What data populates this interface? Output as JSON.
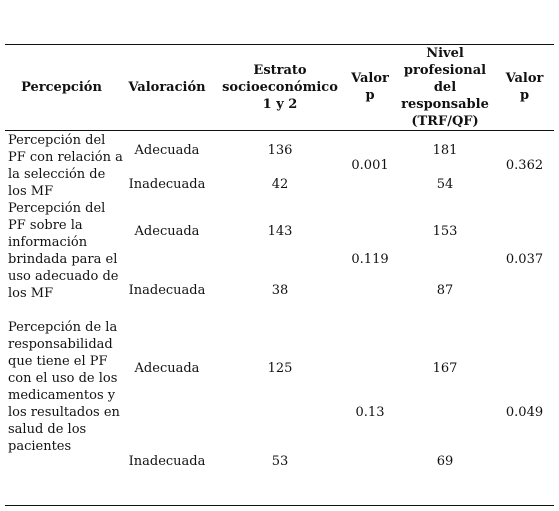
{
  "headers": {
    "percepcion": "Percepción",
    "valoracion": "Valoración",
    "estrato": "Estrato socioeconómico 1 y 2",
    "valor_p_1": "Valor p",
    "nivel": "Nivel profesional del responsable (TRF/QF)",
    "valor_p_2": "Valor p"
  },
  "rows": [
    {
      "percepcion": "Percepción del PF con relación a la selección de los MF",
      "sub": [
        {
          "valoracion": "Adecuada",
          "estrato": "136",
          "nivel": "181"
        },
        {
          "valoracion": "Inadecuada",
          "estrato": "42",
          "nivel": "54"
        }
      ],
      "p1": "0.001",
      "p2": "0.362"
    },
    {
      "percepcion": "Percepción del PF sobre la información brindada para el uso adecuado de los MF",
      "sub": [
        {
          "valoracion": "Adecuada",
          "estrato": "143",
          "nivel": "153"
        },
        {
          "valoracion": "Inadecuada",
          "estrato": "38",
          "nivel": "87"
        }
      ],
      "p1": "0.119",
      "p2": "0.037"
    },
    {
      "percepcion": "Percepción de la responsabilidad  que tiene el PF con el uso de los medicamentos y los resultados en salud de los pacientes",
      "sub": [
        {
          "valoracion": "Adecuada",
          "estrato": "125",
          "nivel": "167"
        },
        {
          "valoracion": "Inadecuada",
          "estrato": "53",
          "nivel": "69"
        }
      ],
      "p1": "0.13",
      "p2": "0.049"
    }
  ]
}
